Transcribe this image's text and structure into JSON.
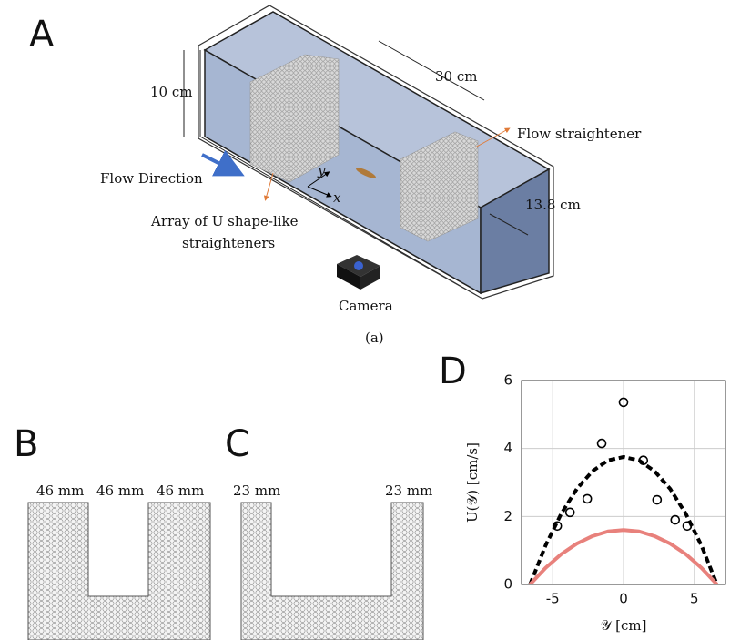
{
  "panel_a": {
    "label": "A",
    "height": "10 cm",
    "length": "30 cm",
    "width": "13.8 cm",
    "flow_straightener": "Flow straightener",
    "flow_direction": "Flow Direction",
    "array_label": [
      "Array of U shape-like",
      "straighteners"
    ],
    "camera": "Camera",
    "axis_x": "x",
    "axis_y": "y",
    "caption": "(a)"
  },
  "panel_b": {
    "label": "B",
    "widths": [
      "46 mm",
      "46 mm",
      "46 mm"
    ]
  },
  "panel_c": {
    "label": "C",
    "widths": [
      "23 mm",
      "23 mm"
    ]
  },
  "chart_data": {
    "type": "scatter",
    "label": "D",
    "x_label": "𝒴 [cm]",
    "y_label": "U(𝒴) [cm/s]",
    "xlim": [
      -7.2,
      7.2
    ],
    "ylim": [
      0,
      6
    ],
    "xticks": [
      -5,
      0,
      5
    ],
    "yticks": [
      0,
      2,
      4,
      6
    ],
    "grid": true,
    "series": [
      {
        "kind": "points",
        "color": "#000000",
        "x": [
          0,
          -1.54,
          1.4,
          -2.56,
          2.37,
          -3.78,
          -4.68,
          3.65,
          4.5
        ],
        "values": [
          5.36,
          4.15,
          3.65,
          2.52,
          2.49,
          2.12,
          1.72,
          1.9,
          1.72
        ]
      },
      {
        "kind": "dashed-line",
        "color": "#000000",
        "x": [
          -6.6,
          -5.5,
          -4.4,
          -3.3,
          -2.2,
          -1.1,
          0,
          1.1,
          2.2,
          3.3,
          4.4,
          5.5,
          6.6
        ],
        "values": [
          0,
          1.15,
          2.08,
          2.81,
          3.33,
          3.65,
          3.75,
          3.65,
          3.33,
          2.81,
          2.08,
          1.15,
          0
        ]
      },
      {
        "kind": "line",
        "color": "#e8817c",
        "x": [
          -6.6,
          -5.5,
          -4.4,
          -3.3,
          -2.2,
          -1.1,
          0,
          1.1,
          2.2,
          3.3,
          4.4,
          5.5,
          6.6
        ],
        "values": [
          0,
          0.49,
          0.89,
          1.2,
          1.42,
          1.56,
          1.6,
          1.56,
          1.42,
          1.2,
          0.89,
          0.49,
          0
        ]
      }
    ]
  }
}
